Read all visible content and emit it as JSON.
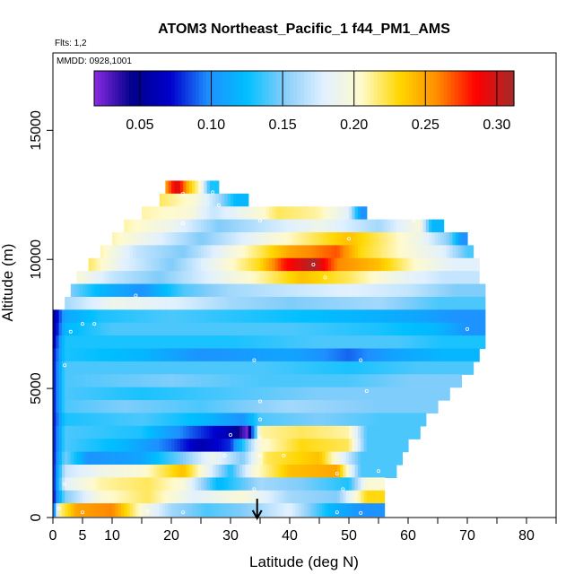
{
  "chart_data": {
    "type": "heatmap",
    "title": "ATOM3 Northeast_Pacific_1 f44_PM1_AMS",
    "subtitle_flights": "Flts: 1,2",
    "subtitle_dates": "MMDD: 0928,1001",
    "xlabel": "Latitude (deg N)",
    "ylabel": "Altitude (m)",
    "xlim": [
      0,
      85
    ],
    "ylim": [
      0,
      18000
    ],
    "x_ticks": [
      0,
      5,
      10,
      20,
      30,
      40,
      50,
      60,
      70,
      80
    ],
    "x_tick_labels": [
      "0",
      "5",
      "10",
      "20",
      "30",
      "40",
      "50",
      "60",
      "70",
      "80"
    ],
    "y_ticks": [
      0,
      5000,
      10000,
      15000
    ],
    "y_tick_labels": [
      "0",
      "5000",
      "10000",
      "15000"
    ],
    "colorbar": {
      "range": [
        0.018,
        0.312
      ],
      "ticks": [
        0.05,
        0.1,
        0.15,
        0.2,
        0.25,
        0.3
      ],
      "tick_labels": [
        "0.05",
        "0.10",
        "0.15",
        "0.20",
        "0.25",
        "0.30"
      ],
      "colors": [
        "#8b2be2",
        "#00008b",
        "#0000cd",
        "#1e90ff",
        "#00bfff",
        "#87cefa",
        "#e0f0ff",
        "#fffacd",
        "#ffd700",
        "#ff8c00",
        "#ff0000",
        "#a52a2a"
      ]
    },
    "marker_latitude": 34.5,
    "rows": [
      {
        "alt": 12800,
        "lat_min": 19,
        "lat_max": 28,
        "segments": [
          [
            19,
            0.25
          ],
          [
            21,
            0.3
          ],
          [
            23,
            0.24
          ],
          [
            25,
            0.2
          ],
          [
            26.5,
            0.13
          ]
        ]
      },
      {
        "alt": 12300,
        "lat_min": 18,
        "lat_max": 33,
        "segments": [
          [
            18,
            0.22
          ],
          [
            24,
            0.2
          ],
          [
            28,
            0.16
          ],
          [
            31,
            0.12
          ]
        ]
      },
      {
        "alt": 11800,
        "lat_min": 15,
        "lat_max": 53,
        "segments": [
          [
            15,
            0.21
          ],
          [
            23,
            0.2
          ],
          [
            27,
            0.17
          ],
          [
            35,
            0.2
          ],
          [
            38,
            0.22
          ],
          [
            45,
            0.21
          ],
          [
            50,
            0.18
          ],
          [
            52,
            0.1
          ]
        ]
      },
      {
        "alt": 11300,
        "lat_min": 12,
        "lat_max": 66,
        "segments": [
          [
            12,
            0.21
          ],
          [
            20,
            0.19
          ],
          [
            28,
            0.15
          ],
          [
            36,
            0.17
          ],
          [
            45,
            0.19
          ],
          [
            55,
            0.16
          ],
          [
            62,
            0.2
          ],
          [
            64,
            0.12
          ]
        ]
      },
      {
        "alt": 10800,
        "lat_min": 10,
        "lat_max": 70,
        "segments": [
          [
            10,
            0.21
          ],
          [
            18,
            0.18
          ],
          [
            25,
            0.15
          ],
          [
            35,
            0.19
          ],
          [
            50,
            0.24
          ],
          [
            55,
            0.22
          ],
          [
            62,
            0.19
          ],
          [
            67,
            0.15
          ],
          [
            69,
            0.1
          ]
        ]
      },
      {
        "alt": 10300,
        "lat_min": 8,
        "lat_max": 71,
        "segments": [
          [
            8,
            0.21
          ],
          [
            14,
            0.17
          ],
          [
            22,
            0.15
          ],
          [
            35,
            0.22
          ],
          [
            40,
            0.25
          ],
          [
            48,
            0.27
          ],
          [
            52,
            0.23
          ],
          [
            60,
            0.2
          ],
          [
            66,
            0.18
          ],
          [
            70,
            0.14
          ]
        ]
      },
      {
        "alt": 9800,
        "lat_min": 6,
        "lat_max": 72,
        "segments": [
          [
            6,
            0.22
          ],
          [
            12,
            0.18
          ],
          [
            20,
            0.15
          ],
          [
            35,
            0.23
          ],
          [
            39,
            0.28
          ],
          [
            44,
            0.31
          ],
          [
            48,
            0.26
          ],
          [
            55,
            0.24
          ],
          [
            62,
            0.2
          ],
          [
            68,
            0.18
          ]
        ]
      },
      {
        "alt": 9300,
        "lat_min": 4,
        "lat_max": 72,
        "segments": [
          [
            4,
            0.2
          ],
          [
            10,
            0.17
          ],
          [
            18,
            0.15
          ],
          [
            35,
            0.21
          ],
          [
            42,
            0.24
          ],
          [
            50,
            0.22
          ],
          [
            58,
            0.19
          ],
          [
            66,
            0.17
          ]
        ]
      },
      {
        "alt": 8800,
        "lat_min": 3,
        "lat_max": 73,
        "segments": [
          [
            3,
            0.15
          ],
          [
            8,
            0.12
          ],
          [
            15,
            0.1
          ],
          [
            22,
            0.14
          ],
          [
            30,
            0.16
          ],
          [
            40,
            0.17
          ],
          [
            50,
            0.18
          ],
          [
            60,
            0.17
          ],
          [
            68,
            0.15
          ]
        ]
      },
      {
        "alt": 8300,
        "lat_min": 2,
        "lat_max": 73,
        "segments": [
          [
            2,
            0.16
          ],
          [
            10,
            0.19
          ],
          [
            20,
            0.18
          ],
          [
            30,
            0.16
          ],
          [
            40,
            0.15
          ],
          [
            55,
            0.16
          ],
          [
            65,
            0.14
          ]
        ]
      },
      {
        "alt": 7800,
        "lat_min": 0,
        "lat_max": 73,
        "segments": [
          [
            0,
            0.05
          ],
          [
            2,
            0.11
          ],
          [
            8,
            0.13
          ],
          [
            20,
            0.14
          ],
          [
            35,
            0.13
          ],
          [
            50,
            0.12
          ],
          [
            62,
            0.11
          ],
          [
            68,
            0.1
          ]
        ]
      },
      {
        "alt": 7300,
        "lat_min": 0,
        "lat_max": 73,
        "segments": [
          [
            0,
            0.05
          ],
          [
            2,
            0.12
          ],
          [
            10,
            0.14
          ],
          [
            25,
            0.14
          ],
          [
            40,
            0.14
          ],
          [
            55,
            0.13
          ],
          [
            65,
            0.12
          ],
          [
            70,
            0.1
          ]
        ]
      },
      {
        "alt": 6800,
        "lat_min": 0,
        "lat_max": 73,
        "segments": [
          [
            0,
            0.06
          ],
          [
            2,
            0.13
          ],
          [
            15,
            0.13
          ],
          [
            30,
            0.13
          ],
          [
            45,
            0.14
          ],
          [
            58,
            0.14
          ],
          [
            66,
            0.13
          ]
        ]
      },
      {
        "alt": 6300,
        "lat_min": 0,
        "lat_max": 72,
        "segments": [
          [
            0,
            0.07
          ],
          [
            2,
            0.13
          ],
          [
            15,
            0.12
          ],
          [
            25,
            0.1
          ],
          [
            40,
            0.11
          ],
          [
            50,
            0.09
          ],
          [
            58,
            0.11
          ],
          [
            66,
            0.12
          ]
        ]
      },
      {
        "alt": 5800,
        "lat_min": 0,
        "lat_max": 71,
        "segments": [
          [
            0,
            0.07
          ],
          [
            2,
            0.14
          ],
          [
            20,
            0.14
          ],
          [
            35,
            0.14
          ],
          [
            50,
            0.13
          ],
          [
            62,
            0.14
          ]
        ]
      },
      {
        "alt": 5300,
        "lat_min": 0,
        "lat_max": 69,
        "segments": [
          [
            0,
            0.07
          ],
          [
            2,
            0.14
          ],
          [
            20,
            0.15
          ],
          [
            35,
            0.14
          ],
          [
            50,
            0.14
          ],
          [
            60,
            0.15
          ]
        ]
      },
      {
        "alt": 4800,
        "lat_min": 0,
        "lat_max": 67,
        "segments": [
          [
            0,
            0.07
          ],
          [
            2,
            0.14
          ],
          [
            15,
            0.13
          ],
          [
            30,
            0.14
          ],
          [
            45,
            0.15
          ],
          [
            58,
            0.15
          ]
        ]
      },
      {
        "alt": 4300,
        "lat_min": 0,
        "lat_max": 65,
        "segments": [
          [
            0,
            0.07
          ],
          [
            2,
            0.14
          ],
          [
            12,
            0.15
          ],
          [
            25,
            0.14
          ],
          [
            40,
            0.16
          ],
          [
            55,
            0.15
          ]
        ]
      },
      {
        "alt": 3800,
        "lat_min": 0,
        "lat_max": 63,
        "segments": [
          [
            0,
            0.07
          ],
          [
            2,
            0.13
          ],
          [
            15,
            0.14
          ],
          [
            26,
            0.12
          ],
          [
            32,
            0.1
          ],
          [
            35,
            0.14
          ],
          [
            45,
            0.15
          ],
          [
            55,
            0.14
          ]
        ]
      },
      {
        "alt": 3300,
        "lat_min": 0,
        "lat_max": 62,
        "segments": [
          [
            0,
            0.07
          ],
          [
            2,
            0.14
          ],
          [
            15,
            0.13
          ],
          [
            23,
            0.09
          ],
          [
            30,
            0.06
          ],
          [
            33,
            0.02
          ],
          [
            35,
            0.21
          ],
          [
            42,
            0.22
          ],
          [
            50,
            0.21
          ],
          [
            53,
            0.14
          ]
        ]
      },
      {
        "alt": 2800,
        "lat_min": 0,
        "lat_max": 60,
        "segments": [
          [
            0,
            0.07
          ],
          [
            2,
            0.14
          ],
          [
            12,
            0.12
          ],
          [
            20,
            0.09
          ],
          [
            25,
            0.06
          ],
          [
            30,
            0.08
          ],
          [
            35,
            0.2
          ],
          [
            42,
            0.23
          ],
          [
            50,
            0.22
          ],
          [
            53,
            0.14
          ]
        ]
      },
      {
        "alt": 2300,
        "lat_min": 0,
        "lat_max": 59,
        "segments": [
          [
            0,
            0.07
          ],
          [
            2,
            0.15
          ],
          [
            6,
            0.1
          ],
          [
            15,
            0.11
          ],
          [
            22,
            0.15
          ],
          [
            27,
            0.19
          ],
          [
            32,
            0.15
          ],
          [
            36,
            0.22
          ],
          [
            45,
            0.24
          ],
          [
            52,
            0.14
          ]
        ]
      },
      {
        "alt": 1800,
        "lat_min": 0,
        "lat_max": 58,
        "segments": [
          [
            0,
            0.07
          ],
          [
            2,
            0.17
          ],
          [
            8,
            0.19
          ],
          [
            15,
            0.2
          ],
          [
            22,
            0.24
          ],
          [
            26,
            0.19
          ],
          [
            30,
            0.13
          ],
          [
            34,
            0.2
          ],
          [
            40,
            0.24
          ],
          [
            48,
            0.25
          ],
          [
            52,
            0.14
          ]
        ]
      },
      {
        "alt": 1300,
        "lat_min": 0,
        "lat_max": 56,
        "segments": [
          [
            0,
            0.07
          ],
          [
            2,
            0.18
          ],
          [
            8,
            0.21
          ],
          [
            16,
            0.22
          ],
          [
            22,
            0.2
          ],
          [
            28,
            0.12
          ],
          [
            35,
            0.16
          ],
          [
            42,
            0.15
          ],
          [
            50,
            0.13
          ],
          [
            53,
            0.2
          ]
        ]
      },
      {
        "alt": 800,
        "lat_min": 0,
        "lat_max": 56,
        "segments": [
          [
            0,
            0.07
          ],
          [
            2,
            0.15
          ],
          [
            8,
            0.2
          ],
          [
            16,
            0.22
          ],
          [
            24,
            0.18
          ],
          [
            32,
            0.2
          ],
          [
            40,
            0.16
          ],
          [
            48,
            0.15
          ],
          [
            53,
            0.23
          ]
        ]
      },
      {
        "alt": 300,
        "lat_min": 0,
        "lat_max": 56,
        "segments": [
          [
            0,
            0.07
          ],
          [
            1,
            0.21
          ],
          [
            4,
            0.25
          ],
          [
            10,
            0.26
          ],
          [
            15,
            0.2
          ],
          [
            20,
            0.16
          ],
          [
            26,
            0.14
          ],
          [
            32,
            0.15
          ],
          [
            40,
            0.18
          ],
          [
            47,
            0.12
          ],
          [
            52,
            0.1
          ]
        ]
      }
    ],
    "sample_points": [
      [
        22,
        12550
      ],
      [
        27,
        12600
      ],
      [
        28,
        12100
      ],
      [
        22,
        11400
      ],
      [
        35,
        11500
      ],
      [
        61,
        11500
      ],
      [
        50,
        10800
      ],
      [
        44,
        9800
      ],
      [
        46,
        9300
      ],
      [
        14,
        8600
      ],
      [
        5,
        7500
      ],
      [
        7,
        7500
      ],
      [
        3,
        7200
      ],
      [
        70,
        7300
      ],
      [
        2,
        5900
      ],
      [
        34,
        6100
      ],
      [
        52,
        6100
      ],
      [
        35,
        4500
      ],
      [
        53,
        4900
      ],
      [
        35,
        3800
      ],
      [
        30,
        3200
      ],
      [
        35,
        3100
      ],
      [
        29,
        2400
      ],
      [
        35,
        2400
      ],
      [
        39,
        2400
      ],
      [
        48,
        1700
      ],
      [
        55,
        1800
      ],
      [
        34,
        1100
      ],
      [
        49,
        1100
      ],
      [
        2,
        1300
      ],
      [
        1,
        350
      ],
      [
        5,
        200
      ],
      [
        16,
        250
      ],
      [
        22,
        200
      ],
      [
        48,
        200
      ],
      [
        52,
        180
      ]
    ]
  }
}
